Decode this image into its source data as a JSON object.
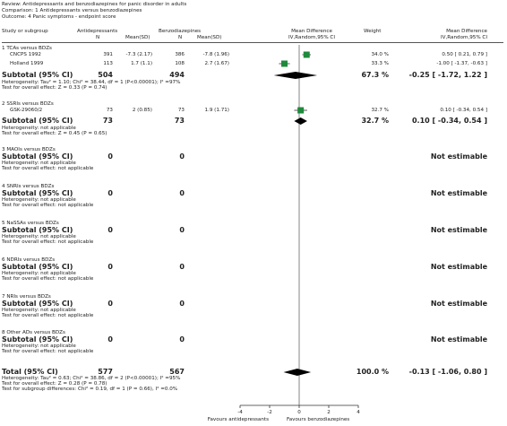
{
  "header": {
    "review": "Review:  Antidepressants and benzodiazepines for panic disorder in adults",
    "comparison": "Comparison:  1 Antidepressants versus benzodiazepines",
    "outcome": "Outcome:  4 Panic symptoms - endpoint score"
  },
  "columns": {
    "study": "Study or subgroup",
    "exp_group": "Antidepressants",
    "ctrl_group": "Benzodiazepines",
    "n": "N",
    "mean_sd": "Mean(SD)",
    "effect_title": "Mean Difference",
    "effect_sub": "IV,Random,95% CI",
    "weight": "Weight",
    "md_title": "Mean Difference",
    "md_sub": "IV,Random,95% CI"
  },
  "groups": [
    {
      "title": "1 TCAs versus BDZs",
      "studies": [
        {
          "name": "CNCPS 1992",
          "n1": "391",
          "ms1": "-7.3 (2.17)",
          "n2": "386",
          "ms2": "-7.8 (1.96)",
          "weight": "34.0 %",
          "ci_text": "0.50 [ 0.21, 0.79 ]"
        },
        {
          "name": "Holland 1999",
          "n1": "113",
          "ms1": "1.7 (1.1)",
          "n2": "108",
          "ms2": "2.7 (1.67)",
          "weight": "33.3 %",
          "ci_text": "-1.00 [ -1.37, -0.63 ]"
        }
      ],
      "subtotal": {
        "label": "Subtotal (95% CI)",
        "n1": "504",
        "n2": "494",
        "weight": "67.3 %",
        "ci_text": "-0.25 [ -1.72, 1.22 ]"
      },
      "het": "Heterogeneity: Tau² = 1.10; Chi² = 38.44, df = 1 (P<0.00001); I² =97%",
      "test": "Test for overall effect: Z = 0.33 (P = 0.74)"
    },
    {
      "title": "2 SSRIs versus BDZs",
      "studies": [
        {
          "name": "GSK-29060/2",
          "n1": "73",
          "ms1": "2 (0.85)",
          "n2": "73",
          "ms2": "1.9 (1.71)",
          "weight": "32.7 %",
          "ci_text": "0.10 [ -0.34, 0.54 ]"
        }
      ],
      "subtotal": {
        "label": "Subtotal (95% CI)",
        "n1": "73",
        "n2": "73",
        "weight": "32.7 %",
        "ci_text": "0.10 [ -0.34, 0.54 ]"
      },
      "het": "Heterogeneity: not applicable",
      "test": "Test for overall effect: Z = 0.45 (P = 0.65)"
    },
    {
      "title": "3 MAOIs versus BDZs",
      "studies": [],
      "subtotal": {
        "label": "Subtotal (95% CI)",
        "n1": "0",
        "n2": "0",
        "weight": "",
        "ci_text": "Not estimable"
      },
      "het": "Heterogeneity: not applicable",
      "test": "Test for overall effect: not applicable"
    },
    {
      "title": "4 SNRIs versus BDZs",
      "studies": [],
      "subtotal": {
        "label": "Subtotal (95% CI)",
        "n1": "0",
        "n2": "0",
        "weight": "",
        "ci_text": "Not estimable"
      },
      "het": "Heterogeneity: not applicable",
      "test": "Test for overall effect: not applicable"
    },
    {
      "title": "5 NaSSAs versus BDZs",
      "studies": [],
      "subtotal": {
        "label": "Subtotal (95% CI)",
        "n1": "0",
        "n2": "0",
        "weight": "",
        "ci_text": "Not estimable"
      },
      "het": "Heterogeneity: not applicable",
      "test": "Test for overall effect: not applicable"
    },
    {
      "title": "6 NDRIs versus BDZs",
      "studies": [],
      "subtotal": {
        "label": "Subtotal (95% CI)",
        "n1": "0",
        "n2": "0",
        "weight": "",
        "ci_text": "Not estimable"
      },
      "het": "Heterogeneity: not applicable",
      "test": "Test for overall effect: not applicable"
    },
    {
      "title": "7 NRIs versus BDZs",
      "studies": [],
      "subtotal": {
        "label": "Subtotal (95% CI)",
        "n1": "0",
        "n2": "0",
        "weight": "",
        "ci_text": "Not estimable"
      },
      "het": "Heterogeneity: not applicable",
      "test": "Test for overall effect: not applicable"
    },
    {
      "title": "8 Other ADs versus BDZs",
      "studies": [],
      "subtotal": {
        "label": "Subtotal (95% CI)",
        "n1": "0",
        "n2": "0",
        "weight": "",
        "ci_text": "Not estimable"
      },
      "het": "Heterogeneity: not applicable",
      "test": "Test for overall effect: not applicable"
    }
  ],
  "total": {
    "label": "Total (95% CI)",
    "n1": "577",
    "n2": "567",
    "weight": "100.0 %",
    "ci_text": "-0.13 [ -1.06, 0.80 ]",
    "het": "Heterogeneity: Tau² = 0.63; Chi² = 38.86, df = 2 (P<0.00001); I² =95%",
    "test": "Test for overall effect: Z = 0.28 (P = 0.78)",
    "subgroup": "Test for subgroup differences: Chi² = 0.19, df = 1 (P = 0.66), I² =0.0%"
  },
  "footer": {
    "favours_left": "Favours antidepressants",
    "favours_right": "Favours benzodiazepines"
  },
  "colors": {
    "marker": "#1f8a3c",
    "diamond": "#000000",
    "line": "#333333"
  },
  "chart_data": {
    "type": "forest",
    "xlim": [
      -4,
      4
    ],
    "ticks": [
      -4,
      -2,
      0,
      2,
      4
    ],
    "tick_labels": [
      "-4",
      "-2",
      "0",
      "2",
      "4"
    ],
    "studies": [
      {
        "name": "CNCPS 1992",
        "md": 0.5,
        "lo": 0.21,
        "hi": 0.79,
        "weight": 34.0
      },
      {
        "name": "Holland 1999",
        "md": -1.0,
        "lo": -1.37,
        "hi": -0.63,
        "weight": 33.3
      },
      {
        "name": "GSK-29060/2",
        "md": 0.1,
        "lo": -0.34,
        "hi": 0.54,
        "weight": 32.7
      }
    ],
    "diamonds": [
      {
        "name": "Subtotal 1 TCAs versus BDZs",
        "md": -0.25,
        "lo": -1.72,
        "hi": 1.22
      },
      {
        "name": "Subtotal 2 SSRIs versus BDZs",
        "md": 0.1,
        "lo": -0.34,
        "hi": 0.54
      },
      {
        "name": "Total",
        "md": -0.13,
        "lo": -1.06,
        "hi": 0.8
      }
    ]
  }
}
